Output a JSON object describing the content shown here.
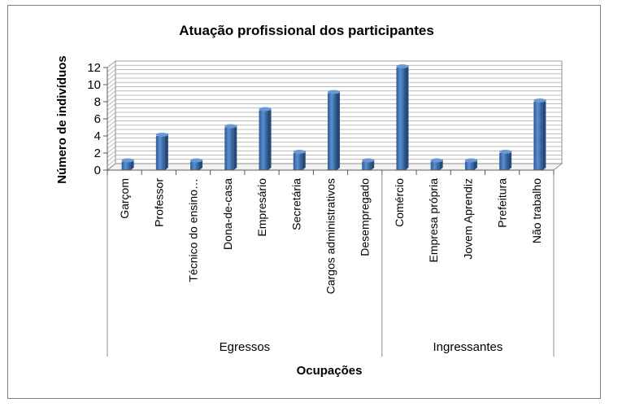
{
  "chart_data": {
    "type": "bar",
    "title": "Atuação profissional dos participantes",
    "xlabel": "Ocupações",
    "ylabel": "Número de indivíduos",
    "ylim": [
      0,
      12
    ],
    "yticks": [
      0,
      2,
      4,
      6,
      8,
      10,
      12
    ],
    "grid": true,
    "style": "3d-cylinder",
    "bar_color": "#4a7ebb",
    "groups": [
      {
        "name": "Egressos",
        "categories": [
          "Garçom",
          "Professor",
          "Técnico do ensino…",
          "Dona-de-casa",
          "Empresário",
          "Secretária",
          "Cargos administrativos",
          "Desempregado"
        ],
        "values": [
          1,
          4,
          1,
          5,
          7,
          2,
          9,
          1
        ]
      },
      {
        "name": "Ingressantes",
        "categories": [
          "Comércio",
          "Empresa própria",
          "Jovem Aprendiz",
          "Prefeitura",
          "Não trabalho"
        ],
        "values": [
          12,
          1,
          1,
          2,
          8
        ]
      }
    ]
  }
}
